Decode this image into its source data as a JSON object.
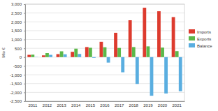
{
  "chart_data": {
    "type": "bar",
    "y_label": "Mio €",
    "categories": [
      "2011",
      "2012",
      "2013",
      "2014",
      "2015",
      "2016",
      "2017",
      "2018",
      "2019",
      "2020",
      "2021"
    ],
    "series": [
      {
        "name": "Imports",
        "color": "#dd3b2e",
        "values": [
          130,
          100,
          170,
          300,
          570,
          870,
          1380,
          2090,
          2800,
          2600,
          2270
        ]
      },
      {
        "name": "Exports",
        "color": "#5cb84a",
        "values": [
          140,
          230,
          330,
          480,
          530,
          560,
          520,
          570,
          610,
          540,
          340
        ]
      },
      {
        "name": "Balance",
        "color": "#5aaee0",
        "values": [
          10,
          130,
          160,
          180,
          -40,
          -310,
          -860,
          -1520,
          -2190,
          -2060,
          -1930
        ]
      }
    ],
    "ylim": [
      -2500,
      3000
    ],
    "yticks": [
      {
        "value": -2500,
        "label": "-2,500"
      },
      {
        "value": -2000,
        "label": "-2,000"
      },
      {
        "value": -1500,
        "label": "-1,500"
      },
      {
        "value": -1000,
        "label": "-1,000"
      },
      -500,
      0,
      500,
      {
        "value": 1000,
        "label": "1,000"
      },
      {
        "value": 1500,
        "label": "1,500"
      },
      {
        "value": 2000,
        "label": "2,000"
      },
      {
        "value": 2500,
        "label": "2,500"
      },
      {
        "value": 3000,
        "label": "3,000"
      }
    ],
    "grid": true,
    "legend": "top-right"
  }
}
